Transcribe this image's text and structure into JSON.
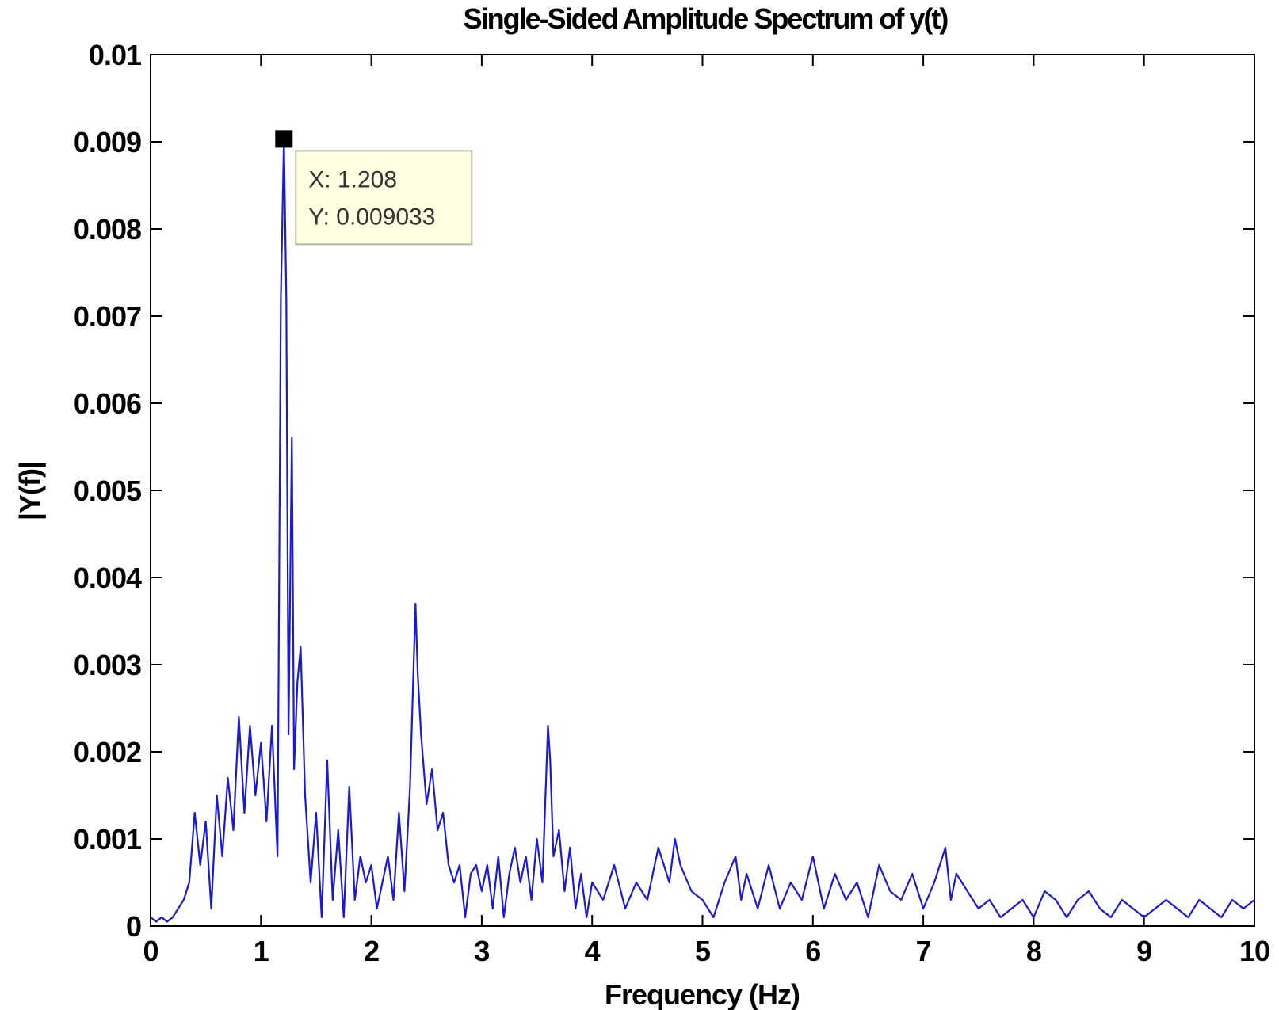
{
  "chart_data": {
    "type": "line",
    "title": "Single-Sided Amplitude Spectrum of y(t)",
    "xlabel": "Frequency (Hz)",
    "ylabel": "|Y(f)|",
    "xlim": [
      0,
      10
    ],
    "ylim": [
      0,
      0.01
    ],
    "xticks": [
      "0",
      "1",
      "2",
      "3",
      "4",
      "5",
      "6",
      "7",
      "8",
      "9",
      "10"
    ],
    "yticks": [
      "0",
      "0.001",
      "0.002",
      "0.003",
      "0.004",
      "0.005",
      "0.006",
      "0.007",
      "0.008",
      "0.009",
      "0.01"
    ],
    "grid": false,
    "series": [
      {
        "color": "#1a1ad6",
        "x": [
          0.0,
          0.05,
          0.1,
          0.15,
          0.2,
          0.25,
          0.3,
          0.35,
          0.4,
          0.45,
          0.5,
          0.55,
          0.6,
          0.65,
          0.7,
          0.75,
          0.8,
          0.85,
          0.9,
          0.95,
          1.0,
          1.05,
          1.1,
          1.15,
          1.18,
          1.208,
          1.23,
          1.25,
          1.28,
          1.3,
          1.33,
          1.36,
          1.4,
          1.45,
          1.5,
          1.55,
          1.6,
          1.65,
          1.7,
          1.75,
          1.8,
          1.85,
          1.9,
          1.95,
          2.0,
          2.05,
          2.1,
          2.15,
          2.2,
          2.25,
          2.3,
          2.35,
          2.4,
          2.42,
          2.45,
          2.5,
          2.55,
          2.6,
          2.65,
          2.7,
          2.75,
          2.8,
          2.85,
          2.9,
          2.95,
          3.0,
          3.05,
          3.1,
          3.15,
          3.2,
          3.25,
          3.3,
          3.35,
          3.4,
          3.45,
          3.5,
          3.55,
          3.6,
          3.62,
          3.65,
          3.7,
          3.75,
          3.8,
          3.85,
          3.9,
          3.95,
          4.0,
          4.1,
          4.2,
          4.3,
          4.4,
          4.5,
          4.6,
          4.7,
          4.75,
          4.8,
          4.9,
          5.0,
          5.1,
          5.2,
          5.3,
          5.35,
          5.4,
          5.5,
          5.6,
          5.7,
          5.8,
          5.9,
          6.0,
          6.1,
          6.2,
          6.3,
          6.4,
          6.5,
          6.6,
          6.7,
          6.8,
          6.9,
          7.0,
          7.1,
          7.2,
          7.25,
          7.3,
          7.4,
          7.5,
          7.6,
          7.7,
          7.8,
          7.9,
          8.0,
          8.1,
          8.2,
          8.3,
          8.4,
          8.5,
          8.6,
          8.7,
          8.8,
          8.9,
          9.0,
          9.1,
          9.2,
          9.3,
          9.4,
          9.5,
          9.6,
          9.7,
          9.8,
          9.9,
          10.0
        ],
        "y": [
          0.0001,
          5e-05,
          0.0001,
          5e-05,
          0.0001,
          0.0002,
          0.0003,
          0.0005,
          0.0013,
          0.0007,
          0.0012,
          0.0002,
          0.0015,
          0.0008,
          0.0017,
          0.0011,
          0.0024,
          0.0013,
          0.0023,
          0.0015,
          0.0021,
          0.0012,
          0.0023,
          0.0008,
          0.0072,
          0.009033,
          0.0072,
          0.0022,
          0.0056,
          0.0018,
          0.0028,
          0.0032,
          0.0015,
          0.0005,
          0.0013,
          0.0001,
          0.0019,
          0.0003,
          0.0011,
          0.0001,
          0.0016,
          0.0003,
          0.0008,
          0.0005,
          0.0007,
          0.0002,
          0.0005,
          0.0008,
          0.0003,
          0.0013,
          0.0004,
          0.0016,
          0.0037,
          0.0029,
          0.0022,
          0.0014,
          0.0018,
          0.0011,
          0.0013,
          0.0007,
          0.0005,
          0.0007,
          0.0001,
          0.0006,
          0.0007,
          0.0004,
          0.0007,
          0.0002,
          0.0008,
          0.0001,
          0.0006,
          0.0009,
          0.0005,
          0.0008,
          0.0003,
          0.001,
          0.0005,
          0.0023,
          0.0019,
          0.0008,
          0.0011,
          0.0004,
          0.0009,
          0.0002,
          0.0006,
          0.0001,
          0.0005,
          0.0003,
          0.0007,
          0.0002,
          0.0005,
          0.0003,
          0.0009,
          0.0005,
          0.001,
          0.0007,
          0.0004,
          0.0003,
          0.0001,
          0.0005,
          0.0008,
          0.0003,
          0.0006,
          0.0002,
          0.0007,
          0.0002,
          0.0005,
          0.0003,
          0.0008,
          0.0002,
          0.0006,
          0.0003,
          0.0005,
          0.0001,
          0.0007,
          0.0004,
          0.0003,
          0.0006,
          0.0002,
          0.0005,
          0.0009,
          0.0003,
          0.0006,
          0.0004,
          0.0002,
          0.0003,
          0.0001,
          0.0002,
          0.0003,
          0.0001,
          0.0004,
          0.0003,
          0.0001,
          0.0003,
          0.0004,
          0.0002,
          0.0001,
          0.0003,
          0.0002,
          0.0001,
          0.0002,
          0.0003,
          0.0002,
          0.0001,
          0.0003,
          0.0002,
          0.0001,
          0.0003,
          0.0002,
          0.0003
        ]
      }
    ],
    "datatip": {
      "x_text": "X: 1.208",
      "y_text": "Y: 0.009033",
      "x": 1.208,
      "y": 0.009033
    }
  }
}
